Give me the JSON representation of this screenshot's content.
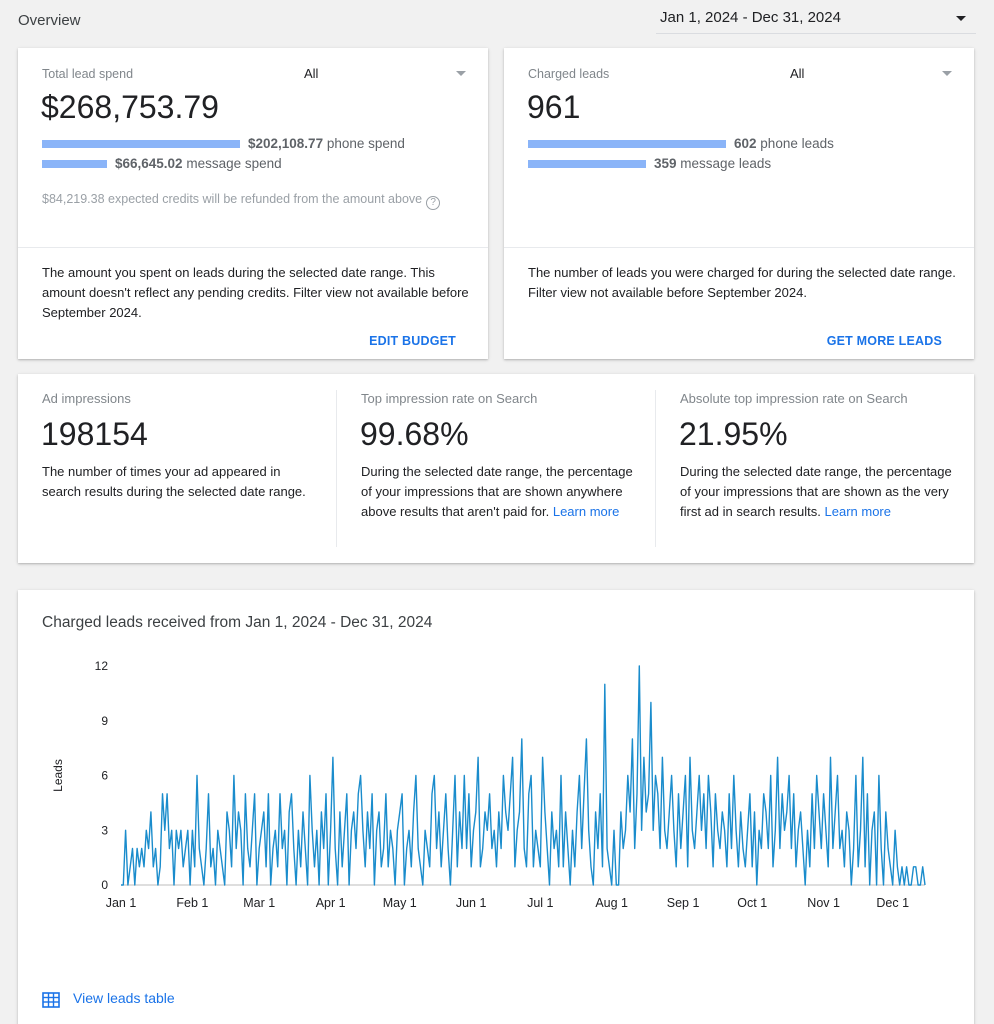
{
  "header": {
    "title": "Overview",
    "date_range": "Jan 1, 2024 - Dec 31, 2024"
  },
  "spend_card": {
    "label": "Total lead spend",
    "filter": "All",
    "total": "$268,753.79",
    "phone_amount": "$202,108.77",
    "phone_suffix": "phone spend",
    "message_amount": "$66,645.02",
    "message_suffix": "message spend",
    "phone_fraction": 0.752,
    "message_fraction": 0.248,
    "credits_note": "$84,219.38 expected credits will be refunded from the amount above",
    "help_glyph": "?",
    "description": "The amount you spent on leads during the selected date range. This amount doesn't reflect any pending credits. Filter view not available before September 2024.",
    "action": "EDIT BUDGET"
  },
  "leads_card": {
    "label": "Charged leads",
    "filter": "All",
    "total": "961",
    "phone_amount": "602",
    "phone_suffix": "phone leads",
    "message_amount": "359",
    "message_suffix": "message leads",
    "phone_fraction": 0.626,
    "message_fraction": 0.374,
    "description": "The number of leads you were charged for during the selected date range. Filter view not available before September 2024.",
    "action": "GET MORE LEADS"
  },
  "impressions": [
    {
      "label": "Ad impressions",
      "value": "198154",
      "description": "The number of times your ad appeared in search results during the selected date range.",
      "link": ""
    },
    {
      "label": "Top impression rate on Search",
      "value": "99.68%",
      "description": "During the selected date range, the percentage of your impressions that are shown anywhere above results that aren't paid for.",
      "link": "Learn more"
    },
    {
      "label": "Absolute top impression rate on Search",
      "value": "21.95%",
      "description": "During the selected date range, the percentage of your impressions that are shown as the very first ad in search results.",
      "link": "Learn more"
    }
  ],
  "chart_card": {
    "title": "Charged leads received from Jan 1, 2024 - Dec 31, 2024",
    "view_table": "View leads table"
  },
  "colors": {
    "accent": "#1a73e8",
    "bar": "#8ab4f8",
    "line": "#1a8ccc"
  },
  "chart_data": {
    "type": "line",
    "title": "Charged leads received from Jan 1, 2024 - Dec 31, 2024",
    "xlabel": "",
    "ylabel": "Leads",
    "ylim": [
      0,
      12
    ],
    "yticks": [
      0,
      3,
      6,
      9,
      12
    ],
    "xticks": [
      "Jan 1",
      "Feb 1",
      "Mar 1",
      "Apr 1",
      "May 1",
      "Jun 1",
      "Jul 1",
      "Aug 1",
      "Sep 1",
      "Oct 1",
      "Nov 1",
      "Dec 1"
    ],
    "grid": false,
    "x_start": "2024-01-01",
    "series": [
      {
        "values": [
          0,
          0,
          3,
          0,
          1,
          2,
          0,
          2,
          1,
          2,
          1,
          3,
          2,
          4,
          1,
          2,
          0,
          1,
          5,
          3,
          5,
          2,
          3,
          0,
          3,
          2,
          3,
          1,
          2,
          3,
          0,
          3,
          1,
          6,
          2,
          1,
          0,
          2,
          5,
          1,
          2,
          0,
          3,
          2,
          1,
          0,
          4,
          3,
          1,
          6,
          2,
          4,
          3,
          0,
          5,
          2,
          1,
          3,
          5,
          0,
          2,
          3,
          4,
          1,
          5,
          0,
          2,
          3,
          1,
          5,
          2,
          3,
          0,
          4,
          5,
          2,
          0,
          3,
          1,
          4,
          2,
          0,
          6,
          3,
          1,
          3,
          0,
          4,
          2,
          5,
          0,
          3,
          7,
          2,
          0,
          4,
          1,
          3,
          5,
          0,
          3,
          4,
          2,
          5,
          6,
          3,
          1,
          4,
          2,
          5,
          0,
          3,
          4,
          1,
          2,
          5,
          1,
          3,
          2,
          0,
          3,
          4,
          5,
          0,
          2,
          3,
          1,
          4,
          6,
          2,
          1,
          0,
          3,
          2,
          1,
          5,
          6,
          2,
          4,
          1,
          3,
          5,
          2,
          0,
          3,
          6,
          1,
          4,
          2,
          6,
          2,
          5,
          1,
          3,
          4,
          7,
          1,
          2,
          4,
          3,
          5,
          2,
          3,
          1,
          4,
          2,
          6,
          4,
          3,
          5,
          7,
          1,
          3,
          4,
          8,
          2,
          1,
          5,
          6,
          1,
          3,
          2,
          1,
          7,
          4,
          2,
          0,
          4,
          2,
          3,
          1,
          6,
          1,
          4,
          2,
          0,
          3,
          1,
          4,
          6,
          2,
          5,
          8,
          3,
          1,
          0,
          4,
          2,
          5,
          1,
          11,
          2,
          1,
          0,
          3,
          0,
          0,
          4,
          2,
          3,
          6,
          4,
          8,
          2,
          5,
          12,
          3,
          7,
          4,
          5,
          10,
          3,
          6,
          5,
          2,
          7,
          3,
          2,
          4,
          6,
          3,
          1,
          5,
          2,
          4,
          6,
          1,
          7,
          3,
          2,
          4,
          6,
          3,
          5,
          2,
          6,
          4,
          1,
          5,
          3,
          2,
          4,
          3,
          1,
          5,
          2,
          6,
          3,
          1,
          4,
          2,
          1,
          3,
          5,
          1,
          4,
          0,
          3,
          2,
          5,
          4,
          2,
          6,
          1,
          3,
          7,
          2,
          5,
          3,
          4,
          6,
          2,
          5,
          1,
          3,
          4,
          2,
          0,
          3,
          1,
          5,
          2,
          6,
          4,
          2,
          5,
          3,
          1,
          7,
          2,
          4,
          6,
          2,
          3,
          1,
          4,
          3,
          0,
          2,
          6,
          1,
          3,
          7,
          1,
          5,
          0,
          3,
          4,
          0,
          6,
          2,
          0,
          4,
          2,
          1,
          0,
          3,
          1,
          0,
          1,
          0,
          1,
          0,
          0,
          1,
          1,
          0,
          0,
          1,
          0
        ],
        "color": "#1a8ccc"
      }
    ]
  }
}
